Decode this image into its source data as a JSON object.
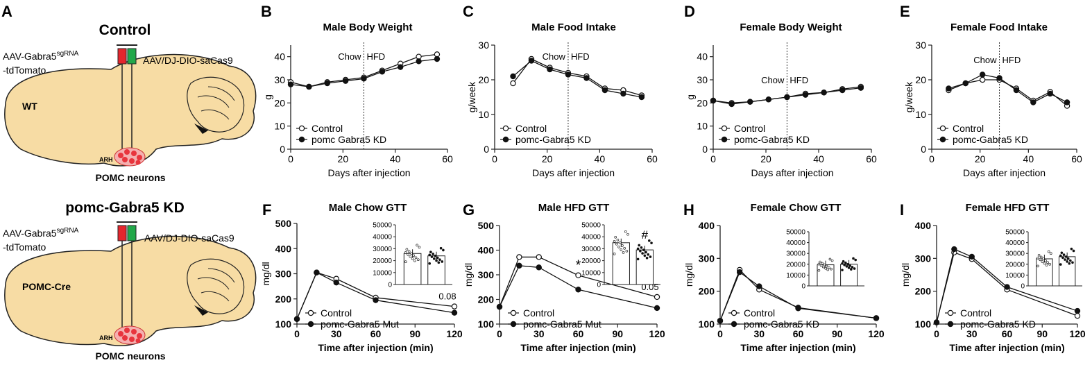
{
  "schematic": {
    "panel_label": "A",
    "top": {
      "title": "Control",
      "vector_left_line1": "AAV-Gabra5",
      "vector_left_sup": "sgRNA",
      "vector_left_line2": "-tdTomato",
      "vector_right": "AAV/DJ-DIO-saCas9",
      "region": "WT",
      "nucleus": "ARH",
      "neurons": "POMC neurons"
    },
    "bottom": {
      "title": "pomc-Gabra5 KD",
      "vector_left_line1": "AAV-Gabra5",
      "vector_left_sup": "sgRNA",
      "vector_left_line2": "-tdTomato",
      "vector_right": "AAV/DJ-DIO-saCas9",
      "region": "POMC-Cre",
      "nucleus": "ARH",
      "neurons": "POMC neurons"
    },
    "colors": {
      "brain": "#f7dca4",
      "syringe_red": "#e5262d",
      "syringe_green": "#22a84a",
      "neuron": "#e8353d"
    }
  },
  "chart_data": [
    {
      "id": "B",
      "panel_label": "B",
      "type": "line",
      "title": "Male  Body Weight",
      "xlabel": "Days after injection",
      "ylabel": "g",
      "xlim": [
        0,
        60
      ],
      "ylim": [
        0,
        45
      ],
      "xticks": [
        0,
        20,
        40,
        60
      ],
      "yticks": [
        0,
        10,
        20,
        30,
        40
      ],
      "divider": {
        "x": 28,
        "left": "Chow",
        "right": "HFD"
      },
      "legend": [
        "Control",
        "pomc Gabra5 KD"
      ],
      "series": [
        {
          "name": "Control",
          "marker": "open",
          "x": [
            0,
            7,
            14,
            21,
            28,
            35,
            42,
            49,
            56
          ],
          "values": [
            29,
            27,
            29,
            30,
            31,
            34,
            37,
            40,
            41
          ]
        },
        {
          "name": "pomc Gabra5 KD",
          "marker": "filled",
          "x": [
            0,
            7,
            14,
            21,
            28,
            35,
            42,
            49,
            56
          ],
          "values": [
            28,
            27,
            28.5,
            29.5,
            30.5,
            33.5,
            35.5,
            38,
            39
          ]
        }
      ]
    },
    {
      "id": "C",
      "panel_label": "C",
      "type": "line",
      "title": "Male Food Intake",
      "xlabel": "Days after injection",
      "ylabel": "g/week",
      "xlim": [
        0,
        60
      ],
      "ylim": [
        0,
        30
      ],
      "xticks": [
        0,
        20,
        40,
        60
      ],
      "yticks": [
        0,
        10,
        20,
        30
      ],
      "divider": {
        "x": 28,
        "left": "Chow",
        "right": "HFD"
      },
      "legend": [
        "Control",
        "pomc-Gabra5 KD"
      ],
      "series": [
        {
          "name": "Control",
          "marker": "open",
          "x": [
            7,
            14,
            21,
            28,
            35,
            42,
            49,
            56
          ],
          "values": [
            19,
            26,
            23.5,
            22,
            21,
            17.5,
            17,
            15.5
          ]
        },
        {
          "name": "pomc-Gabra5 KD",
          "marker": "filled",
          "x": [
            7,
            14,
            21,
            28,
            35,
            42,
            49,
            56
          ],
          "values": [
            21,
            25.5,
            23,
            21.5,
            20.5,
            17,
            16,
            15
          ]
        }
      ]
    },
    {
      "id": "D",
      "panel_label": "D",
      "type": "line",
      "title": "Female Body Weight",
      "xlabel": "Days after injection",
      "ylabel": "g",
      "xlim": [
        0,
        60
      ],
      "ylim": [
        0,
        45
      ],
      "xticks": [
        0,
        20,
        40,
        60
      ],
      "yticks": [
        0,
        10,
        20,
        30,
        40
      ],
      "divider": {
        "x": 28,
        "left": "Chow",
        "right": "HFD"
      },
      "legend": [
        "Control",
        "pomc-Gabra5 KD"
      ],
      "series": [
        {
          "name": "Control",
          "marker": "open",
          "x": [
            0,
            7,
            14,
            21,
            28,
            35,
            42,
            49,
            56
          ],
          "values": [
            21,
            20,
            20.5,
            21.5,
            22.5,
            24,
            24.5,
            26,
            27
          ]
        },
        {
          "name": "pomc-Gabra5 KD",
          "marker": "filled",
          "x": [
            0,
            7,
            14,
            21,
            28,
            35,
            42,
            49,
            56
          ],
          "values": [
            21,
            19.5,
            20.5,
            21.5,
            22.5,
            23.5,
            24.5,
            25.5,
            26.5
          ]
        }
      ]
    },
    {
      "id": "E",
      "panel_label": "E",
      "type": "line",
      "title": "Female Food Intake",
      "xlabel": "Days after injection",
      "ylabel": "g/week",
      "xlim": [
        0,
        60
      ],
      "ylim": [
        0,
        30
      ],
      "xticks": [
        0,
        20,
        40,
        60
      ],
      "yticks": [
        0,
        10,
        20,
        30
      ],
      "divider": {
        "x": 28,
        "left": "Chow",
        "right": "HFD"
      },
      "legend": [
        "Control",
        "pomc-Gabra5 KD"
      ],
      "series": [
        {
          "name": "Control",
          "marker": "open",
          "x": [
            7,
            14,
            21,
            28,
            35,
            42,
            49,
            56
          ],
          "values": [
            17,
            19,
            20,
            20,
            17.5,
            14,
            16.5,
            12.5
          ]
        },
        {
          "name": "pomc-Gabra5 KD",
          "marker": "filled",
          "x": [
            7,
            14,
            21,
            28,
            35,
            42,
            49,
            56
          ],
          "values": [
            17.5,
            19,
            21.5,
            20.5,
            17,
            13.5,
            16,
            13.5
          ]
        }
      ]
    },
    {
      "id": "F",
      "panel_label": "F",
      "type": "line",
      "title": "Male Chow GTT",
      "xlabel": "Time after injection (min)",
      "ylabel": "mg/dl",
      "xlim": [
        0,
        120
      ],
      "ylim": [
        100,
        500
      ],
      "xticks": [
        0,
        30,
        60,
        90,
        120
      ],
      "yticks": [
        100,
        200,
        300,
        400,
        500
      ],
      "legend": [
        "Control",
        "pomc-Gabra5 Mut"
      ],
      "annotations": [
        {
          "x": 120,
          "y": 170,
          "text": "0.08"
        }
      ],
      "series": [
        {
          "name": "Control",
          "marker": "open",
          "x": [
            0,
            15,
            30,
            60,
            120
          ],
          "values": [
            120,
            305,
            280,
            205,
            170
          ]
        },
        {
          "name": "pomc-Gabra5 Mut",
          "marker": "filled",
          "x": [
            0,
            15,
            30,
            60,
            120
          ],
          "values": [
            120,
            305,
            265,
            195,
            145
          ]
        }
      ],
      "inset": {
        "type": "bar",
        "ylim": [
          0,
          50000
        ],
        "yticks": [
          0,
          10000,
          20000,
          30000,
          40000,
          50000
        ],
        "categories": [
          "Control",
          "pomc-Gabra5 Mut"
        ],
        "values": [
          26000,
          24000
        ],
        "marks": [
          "",
          ""
        ]
      }
    },
    {
      "id": "G",
      "panel_label": "G",
      "type": "line",
      "title": "Male HFD GTT",
      "xlabel": "Time after injection (min)",
      "ylabel": "mg/dl",
      "xlim": [
        0,
        120
      ],
      "ylim": [
        100,
        500
      ],
      "xticks": [
        0,
        30,
        60,
        90,
        120
      ],
      "yticks": [
        100,
        200,
        300,
        400,
        500
      ],
      "legend": [
        "Control",
        "pomc-Gabra5 Mut"
      ],
      "annotations": [
        {
          "x": 60,
          "y": 298,
          "text": "*"
        },
        {
          "x": 120,
          "y": 210,
          "text": "0.05"
        }
      ],
      "series": [
        {
          "name": "Control",
          "marker": "open",
          "x": [
            0,
            15,
            30,
            60,
            120
          ],
          "values": [
            170,
            372,
            372,
            298,
            210
          ]
        },
        {
          "name": "pomc-Gabra5 Mut",
          "marker": "filled",
          "x": [
            0,
            15,
            30,
            60,
            120
          ],
          "values": [
            170,
            337,
            330,
            240,
            165
          ]
        }
      ],
      "inset": {
        "type": "bar",
        "ylim": [
          0,
          50000
        ],
        "yticks": [
          0,
          10000,
          20000,
          30000,
          40000,
          50000
        ],
        "categories": [
          "Control",
          "pomc-Gabra5 Mut"
        ],
        "values": [
          35000,
          29000
        ],
        "marks": [
          "",
          "#"
        ]
      }
    },
    {
      "id": "H",
      "panel_label": "H",
      "type": "line",
      "title": "Female Chow GTT",
      "xlabel": "Time after injection (min)",
      "ylabel": "mg/dl",
      "xlim": [
        0,
        120
      ],
      "ylim": [
        100,
        400
      ],
      "xticks": [
        0,
        30,
        60,
        90,
        120
      ],
      "yticks": [
        100,
        200,
        300,
        400
      ],
      "legend": [
        "Control",
        "pomc-Gabra5 KD"
      ],
      "series": [
        {
          "name": "Control",
          "marker": "open",
          "x": [
            0,
            15,
            30,
            60,
            120
          ],
          "values": [
            110,
            265,
            205,
            150,
            118
          ]
        },
        {
          "name": "pomc-Gabra5 KD",
          "marker": "filled",
          "x": [
            0,
            15,
            30,
            60,
            120
          ],
          "values": [
            110,
            258,
            215,
            148,
            118
          ]
        }
      ],
      "inset": {
        "type": "bar",
        "ylim": [
          0,
          50000
        ],
        "yticks": [
          0,
          10000,
          20000,
          30000,
          40000,
          50000
        ],
        "categories": [
          "Control",
          "pomc-Gabra5 KD"
        ],
        "values": [
          19500,
          20000
        ],
        "marks": [
          "",
          ""
        ]
      }
    },
    {
      "id": "I",
      "panel_label": "I",
      "type": "line",
      "title": "Female HFD GTT",
      "xlabel": "Time after injection (min)",
      "ylabel": "mg/dl",
      "xlim": [
        0,
        120
      ],
      "ylim": [
        100,
        400
      ],
      "xticks": [
        0,
        30,
        60,
        90,
        120
      ],
      "yticks": [
        100,
        200,
        300,
        400
      ],
      "legend": [
        "Control",
        "pomc-Gabra5 KD"
      ],
      "series": [
        {
          "name": "Control",
          "marker": "open",
          "x": [
            0,
            15,
            30,
            60,
            120
          ],
          "values": [
            105,
            318,
            298,
            205,
            125
          ]
        },
        {
          "name": "pomc-Gabra5 KD",
          "marker": "filled",
          "x": [
            0,
            15,
            30,
            60,
            120
          ],
          "values": [
            105,
            328,
            305,
            213,
            140
          ]
        }
      ],
      "inset": {
        "type": "bar",
        "ylim": [
          0,
          50000
        ],
        "yticks": [
          0,
          10000,
          20000,
          30000,
          40000,
          50000
        ],
        "categories": [
          "Control",
          "pomc-Gabra5 KD"
        ],
        "values": [
          25000,
          27000
        ],
        "marks": [
          "",
          ""
        ]
      }
    }
  ]
}
